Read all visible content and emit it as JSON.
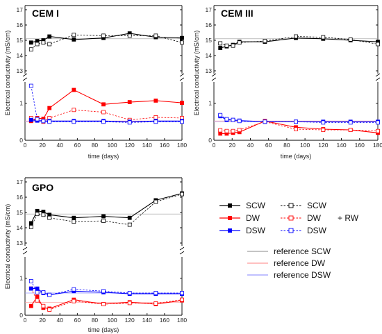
{
  "chart_data": [
    {
      "type": "line",
      "title": "CEM I",
      "xlabel": "time (days)",
      "ylabel": "Electrical conductivity (mS/cm)",
      "xlim": [
        0,
        180
      ],
      "ylim_upper": [
        13,
        17
      ],
      "ylim_lower": [
        0,
        1.5
      ],
      "axis_break": true,
      "x_ticks": [
        "0",
        "20",
        "40",
        "60",
        "80",
        "100",
        "120",
        "140",
        "160",
        "180"
      ],
      "y_ticks_upper": [
        "13",
        "14",
        "15",
        "16",
        "17"
      ],
      "y_ticks_lower": [
        "0",
        "1"
      ],
      "series": [
        {
          "name": "SCW",
          "color": "#000000",
          "dashed": false,
          "marker": "filled-square",
          "x": [
            7,
            14,
            21,
            28,
            56,
            90,
            120,
            150,
            180
          ],
          "y": [
            14.85,
            14.95,
            15.0,
            15.25,
            15.05,
            15.15,
            15.45,
            15.2,
            15.15
          ]
        },
        {
          "name": "SCW",
          "color": "#000000",
          "dashed": true,
          "marker": "open-square",
          "x": [
            7,
            14,
            21,
            28,
            56,
            90,
            120,
            150,
            180
          ],
          "y": [
            14.4,
            14.75,
            14.85,
            14.75,
            15.35,
            15.3,
            15.3,
            15.3,
            14.85
          ]
        },
        {
          "name": "DW",
          "color": "#ff0000",
          "dashed": false,
          "marker": "filled-square",
          "x": [
            7,
            14,
            21,
            28,
            56,
            90,
            120,
            150,
            180
          ],
          "y": [
            0.52,
            0.6,
            0.58,
            0.87,
            1.36,
            0.97,
            1.03,
            1.07,
            1.01
          ]
        },
        {
          "name": "DW",
          "color": "#ff0000",
          "dashed": true,
          "marker": "open-square",
          "x": [
            7,
            14,
            21,
            28,
            56,
            90,
            120,
            150,
            180
          ],
          "y": [
            0.6,
            0.55,
            0.5,
            0.6,
            0.82,
            0.76,
            0.55,
            0.62,
            0.6
          ]
        },
        {
          "name": "DSW",
          "color": "#0000ff",
          "dashed": false,
          "marker": "filled-square",
          "x": [
            7,
            14,
            21,
            28,
            56,
            90,
            120,
            150,
            180
          ],
          "y": [
            0.55,
            0.53,
            0.52,
            0.52,
            0.52,
            0.52,
            0.5,
            0.52,
            0.52
          ]
        },
        {
          "name": "DSW",
          "color": "#0000ff",
          "dashed": true,
          "marker": "open-square",
          "x": [
            7,
            14,
            21,
            28,
            56,
            90,
            120,
            150,
            180
          ],
          "y": [
            1.47,
            0.57,
            0.52,
            0.5,
            0.5,
            0.5,
            0.48,
            0.5,
            0.5
          ]
        }
      ],
      "reference_lines": [
        {
          "name": "reference SCW",
          "color": "#999999",
          "y": 15.1
        },
        {
          "name": "reference DW",
          "color": "#ff9999",
          "y": 0.52
        },
        {
          "name": "reference DSW",
          "color": "#9999ff",
          "y": 0.5
        }
      ]
    },
    {
      "type": "line",
      "title": "CEM III",
      "xlabel": "time (days)",
      "ylabel": "Electrical conductivity (mS/cm)",
      "xlim": [
        0,
        180
      ],
      "ylim_upper": [
        13,
        17
      ],
      "ylim_lower": [
        0,
        1.5
      ],
      "axis_break": true,
      "x_ticks": [
        "0",
        "20",
        "40",
        "60",
        "80",
        "100",
        "120",
        "140",
        "160",
        "180"
      ],
      "y_ticks_upper": [
        "13",
        "14",
        "15",
        "16",
        "17"
      ],
      "y_ticks_lower": [
        "0",
        "1"
      ],
      "series": [
        {
          "name": "SCW",
          "color": "#000000",
          "dashed": false,
          "marker": "filled-square",
          "x": [
            7,
            14,
            21,
            28,
            56,
            90,
            120,
            150,
            180
          ],
          "y": [
            14.5,
            14.6,
            14.7,
            14.9,
            14.9,
            15.15,
            15.1,
            15.0,
            14.9
          ]
        },
        {
          "name": "SCW",
          "color": "#000000",
          "dashed": true,
          "marker": "open-square",
          "x": [
            7,
            14,
            21,
            28,
            56,
            90,
            120,
            150,
            180
          ],
          "y": [
            14.8,
            14.65,
            14.65,
            14.85,
            14.95,
            15.25,
            15.2,
            15.05,
            14.75
          ]
        },
        {
          "name": "DW",
          "color": "#ff0000",
          "dashed": false,
          "marker": "filled-square",
          "x": [
            7,
            14,
            21,
            28,
            56,
            90,
            120,
            150,
            180
          ],
          "y": [
            0.18,
            0.18,
            0.2,
            0.22,
            0.52,
            0.35,
            0.3,
            0.28,
            0.2
          ]
        },
        {
          "name": "DW",
          "color": "#ff0000",
          "dashed": true,
          "marker": "open-square",
          "x": [
            7,
            14,
            21,
            28,
            56,
            90,
            120,
            150,
            180
          ],
          "y": [
            0.27,
            0.25,
            0.25,
            0.28,
            0.5,
            0.3,
            0.28,
            0.28,
            0.25
          ]
        },
        {
          "name": "DSW",
          "color": "#0000ff",
          "dashed": false,
          "marker": "filled-square",
          "x": [
            7,
            14,
            21,
            28,
            56,
            90,
            120,
            150,
            180
          ],
          "y": [
            0.65,
            0.55,
            0.55,
            0.53,
            0.5,
            0.5,
            0.5,
            0.5,
            0.5
          ]
        },
        {
          "name": "DSW",
          "color": "#0000ff",
          "dashed": true,
          "marker": "open-square",
          "x": [
            7,
            14,
            21,
            28,
            56,
            90,
            120,
            150,
            180
          ],
          "y": [
            0.68,
            0.57,
            0.55,
            0.52,
            0.5,
            0.5,
            0.48,
            0.48,
            0.48
          ]
        }
      ],
      "reference_lines": [
        {
          "name": "reference SCW",
          "color": "#999999",
          "y": 15.1
        },
        {
          "name": "reference DW",
          "color": "#ff9999",
          "y": 0.52
        },
        {
          "name": "reference DSW",
          "color": "#9999ff",
          "y": 0.5
        }
      ]
    },
    {
      "type": "line",
      "title": "GPO",
      "xlabel": "time (days)",
      "ylabel": "Electrical conductivity (mS/cm)",
      "xlim": [
        0,
        180
      ],
      "ylim_upper": [
        13,
        17
      ],
      "ylim_lower": [
        0,
        1.5
      ],
      "axis_break": true,
      "x_ticks": [
        "0",
        "20",
        "40",
        "60",
        "80",
        "100",
        "120",
        "140",
        "160",
        "180"
      ],
      "y_ticks_upper": [
        "13",
        "14",
        "15",
        "16",
        "17"
      ],
      "y_ticks_lower": [
        "0",
        "1"
      ],
      "series": [
        {
          "name": "SCW",
          "color": "#000000",
          "dashed": false,
          "marker": "filled-square",
          "x": [
            7,
            14,
            21,
            28,
            56,
            90,
            120,
            150,
            180
          ],
          "y": [
            14.3,
            15.1,
            15.05,
            14.85,
            14.65,
            14.75,
            14.65,
            15.8,
            16.25
          ]
        },
        {
          "name": "SCW",
          "color": "#000000",
          "dashed": true,
          "marker": "open-square",
          "x": [
            7,
            14,
            21,
            28,
            56,
            90,
            120,
            150,
            180
          ],
          "y": [
            14.05,
            14.9,
            14.85,
            14.65,
            14.4,
            14.45,
            14.2,
            15.7,
            16.2
          ]
        },
        {
          "name": "DW",
          "color": "#ff0000",
          "dashed": false,
          "marker": "filled-square",
          "x": [
            7,
            14,
            21,
            28,
            56,
            90,
            120,
            150,
            180
          ],
          "y": [
            0.25,
            0.5,
            0.2,
            0.18,
            0.42,
            0.3,
            0.35,
            0.3,
            0.4
          ]
        },
        {
          "name": "DW",
          "color": "#ff0000",
          "dashed": true,
          "marker": "open-square",
          "x": [
            7,
            14,
            21,
            28,
            56,
            90,
            120,
            150,
            180
          ],
          "y": [
            0.72,
            0.4,
            0.25,
            0.15,
            0.38,
            0.3,
            0.33,
            0.32,
            0.42
          ]
        },
        {
          "name": "DSW",
          "color": "#0000ff",
          "dashed": false,
          "marker": "filled-square",
          "x": [
            7,
            14,
            21,
            28,
            56,
            90,
            120,
            150,
            180
          ],
          "y": [
            0.72,
            0.72,
            0.6,
            0.55,
            0.65,
            0.62,
            0.58,
            0.58,
            0.58
          ]
        },
        {
          "name": "DSW",
          "color": "#0000ff",
          "dashed": true,
          "marker": "open-square",
          "x": [
            7,
            14,
            21,
            28,
            56,
            90,
            120,
            150,
            180
          ],
          "y": [
            0.92,
            0.62,
            0.62,
            0.55,
            0.7,
            0.65,
            0.6,
            0.6,
            0.6
          ]
        }
      ],
      "reference_lines": [
        {
          "name": "reference SCW",
          "color": "#999999",
          "y": 14.9
        },
        {
          "name": "reference DW",
          "color": "#ff9999",
          "y": 0.35
        },
        {
          "name": "reference DSW",
          "color": "#9999ff",
          "y": 0.6
        }
      ]
    }
  ],
  "legend": {
    "rows": [
      {
        "label_left": "SCW",
        "label_right": "SCW",
        "color": "#000000"
      },
      {
        "label_left": "DW",
        "label_right": "DW",
        "color": "#ff0000"
      },
      {
        "label_left": "DSW",
        "label_right": "DSW",
        "color": "#0000ff"
      }
    ],
    "suffix": "+ RW",
    "reference": [
      {
        "label": "reference SCW",
        "color": "#888888"
      },
      {
        "label": "reference DW",
        "color": "#ff8080"
      },
      {
        "label": "reference DSW",
        "color": "#8080ff"
      }
    ]
  }
}
